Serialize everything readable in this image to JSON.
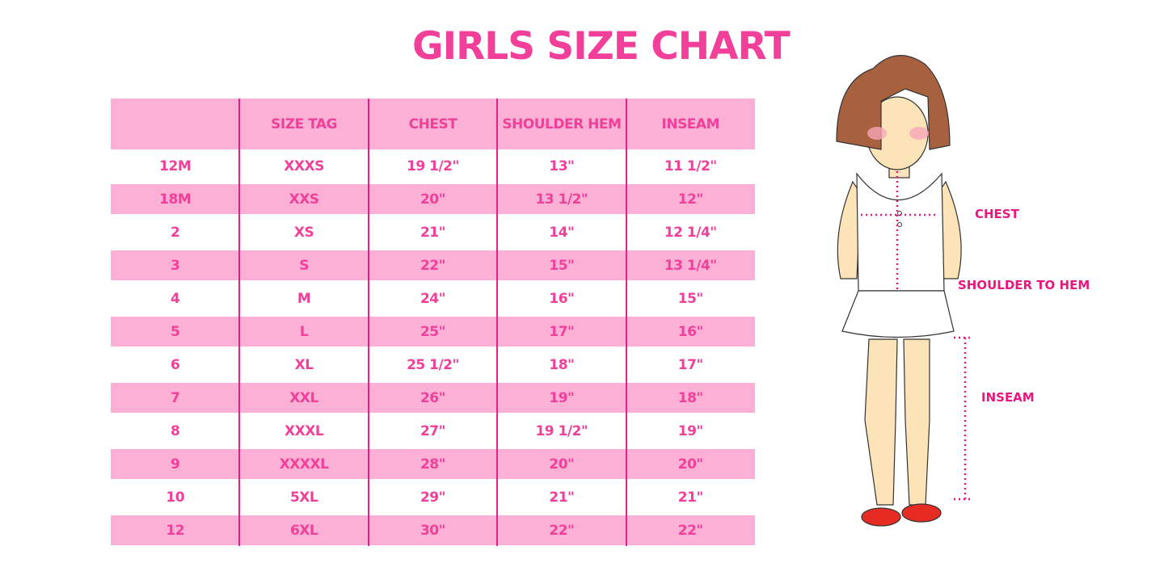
{
  "title": "GIRLS SIZE CHART",
  "table": {
    "headers": [
      "",
      "SIZE TAG",
      "CHEST",
      "SHOULDER HEM",
      "INSEAM"
    ],
    "rows": [
      [
        "12M",
        "XXXS",
        "19 1/2\"",
        "13\"",
        "11 1/2\""
      ],
      [
        "18M",
        "XXS",
        "20\"",
        "13 1/2\"",
        "12\""
      ],
      [
        "2",
        "XS",
        "21\"",
        "14\"",
        "12 1/4\""
      ],
      [
        "3",
        "S",
        "22\"",
        "15\"",
        "13 1/4\""
      ],
      [
        "4",
        "M",
        "24\"",
        "16\"",
        "15\""
      ],
      [
        "5",
        "L",
        "25\"",
        "17\"",
        "16\""
      ],
      [
        "6",
        "XL",
        "25 1/2\"",
        "18\"",
        "17\""
      ],
      [
        "7",
        "XXL",
        "26\"",
        "19\"",
        "18\""
      ],
      [
        "8",
        "XXXL",
        "27\"",
        "19 1/2\"",
        "19\""
      ],
      [
        "9",
        "XXXXL",
        "28\"",
        "20\"",
        "20\""
      ],
      [
        "10",
        "5XL",
        "29\"",
        "21\"",
        "21\""
      ],
      [
        "12",
        "6XL",
        "30\"",
        "22\"",
        "22\""
      ]
    ]
  },
  "figure": {
    "chest_label": "CHEST",
    "shoulder_label": "SHOULDER TO HEM",
    "inseam_label": "INSEAM"
  },
  "colors": {
    "accent": "#f0409a",
    "band": "#fdb0d5",
    "line": "#e81e8c"
  }
}
